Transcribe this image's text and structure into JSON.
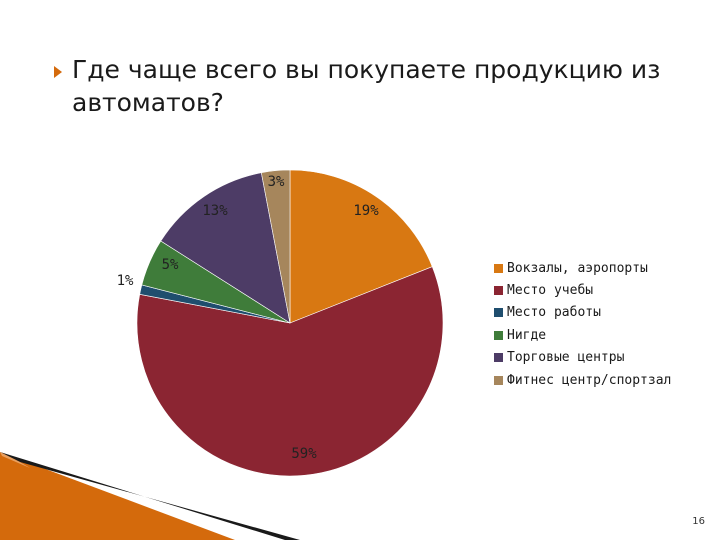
{
  "slide": {
    "title": "Где чаще всего вы покупаете продукцию из автоматов?",
    "page_number": "16",
    "accent_color": "#d46a0c"
  },
  "chart_data": {
    "type": "pie",
    "title": "",
    "series": [
      {
        "name": "Вокзалы, аэропорты",
        "value": 19,
        "label": "19%",
        "color": "#d87812"
      },
      {
        "name": "Место учебы",
        "value": 59,
        "label": "59%",
        "color": "#8b2532"
      },
      {
        "name": "Место работы",
        "value": 1,
        "label": "1%",
        "color": "#1f4e6e"
      },
      {
        "name": "Нигде",
        "value": 5,
        "label": "5%",
        "color": "#3f7c3a"
      },
      {
        "name": "Торговые центры",
        "value": 13,
        "label": "13%",
        "color": "#4d3c66"
      },
      {
        "name": "Фитнес центр/спортзал",
        "value": 3,
        "label": "3%",
        "color": "#a6865c"
      }
    ],
    "legend_position": "right"
  }
}
